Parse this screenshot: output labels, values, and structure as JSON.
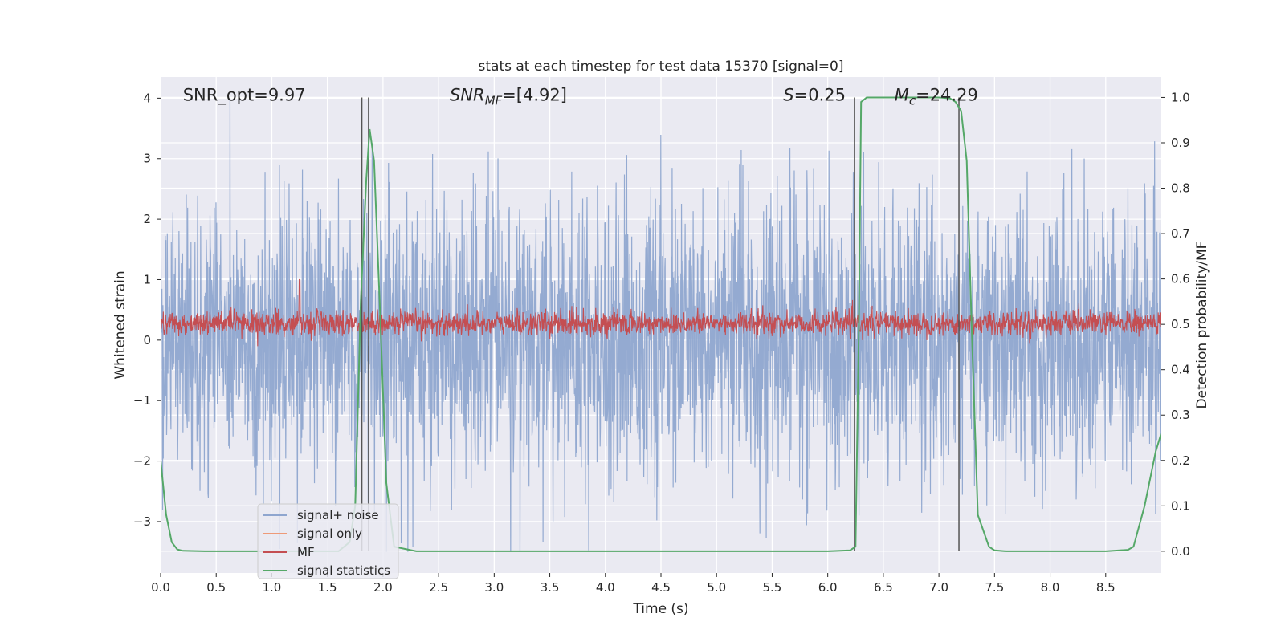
{
  "chart_data": {
    "type": "line",
    "title": "stats at each timestep for test data 15370 [signal=0]",
    "xlabel": "Time (s)",
    "ylabel": "Whitened strain",
    "y2label": "Detection probability/MF",
    "xlim": [
      0,
      9.0
    ],
    "ylim": [
      -3.85,
      4.35
    ],
    "y2lim": [
      -0.048,
      1.045
    ],
    "xticks": [
      0.0,
      0.5,
      1.0,
      1.5,
      2.0,
      2.5,
      3.0,
      3.5,
      4.0,
      4.5,
      5.0,
      5.5,
      6.0,
      6.5,
      7.0,
      7.5,
      8.0,
      8.5
    ],
    "xtick_labels": [
      "0.0",
      "0.5",
      "1.0",
      "1.5",
      "2.0",
      "2.5",
      "3.0",
      "3.5",
      "4.0",
      "4.5",
      "5.0",
      "5.5",
      "6.0",
      "6.5",
      "7.0",
      "7.5",
      "8.0",
      "8.5"
    ],
    "yticks": [
      -3,
      -2,
      -1,
      0,
      1,
      2,
      3,
      4
    ],
    "ytick_labels": [
      "−3",
      "−2",
      "−1",
      "0",
      "1",
      "2",
      "3",
      "4"
    ],
    "y2ticks": [
      0.0,
      0.1,
      0.2,
      0.3,
      0.4,
      0.5,
      0.6,
      0.7,
      0.8,
      0.9,
      1.0
    ],
    "y2tick_labels": [
      "0.0",
      "0.1",
      "0.2",
      "0.3",
      "0.4",
      "0.5",
      "0.6",
      "0.7",
      "0.8",
      "0.9",
      "1.0"
    ],
    "grid": true,
    "legend_position": "lower-left",
    "annotations": [
      {
        "text": "SNR_opt=9.97",
        "x": 0.2,
        "y": 4.05
      },
      {
        "text": "SNR_MF=[4.92]",
        "x": 2.6,
        "y": 4.05
      },
      {
        "text": "S=0.25",
        "x": 5.6,
        "y": 4.05
      },
      {
        "text": "M_c=24.29",
        "x": 6.6,
        "y": 4.05
      }
    ],
    "vertical_lines": [
      1.81,
      1.87,
      6.24,
      7.18
    ],
    "series": [
      {
        "name": "signal+ noise",
        "color": "#8fa6cf",
        "axis": "left",
        "noise_amplitude_typical": 1.5,
        "noise_peak": 4.0
      },
      {
        "name": "signal only",
        "color": "#ee9a78",
        "axis": "left",
        "values": []
      },
      {
        "name": "MF",
        "color": "#c44e52",
        "axis": "left",
        "center": 0.28,
        "amplitude_typical": 0.2,
        "peak": 1.0
      },
      {
        "name": "signal statistics",
        "color": "#55a868",
        "axis": "right",
        "x": [
          0.0,
          0.05,
          0.1,
          0.15,
          0.2,
          0.4,
          0.8,
          1.2,
          1.6,
          1.7,
          1.75,
          1.8,
          1.85,
          1.88,
          1.92,
          1.97,
          2.03,
          2.1,
          2.3,
          3.0,
          4.0,
          5.0,
          6.0,
          6.2,
          6.25,
          6.28,
          6.3,
          6.35,
          6.5,
          6.8,
          7.0,
          7.1,
          7.15,
          7.2,
          7.25,
          7.3,
          7.35,
          7.45,
          7.5,
          7.6,
          8.0,
          8.5,
          8.7,
          8.75,
          8.85,
          8.95,
          9.0
        ],
        "values": [
          0.2,
          0.08,
          0.02,
          0.004,
          0.001,
          0.0,
          0.0,
          0.0,
          0.0,
          0.02,
          0.1,
          0.55,
          0.82,
          0.93,
          0.86,
          0.55,
          0.15,
          0.01,
          0.0,
          0.0,
          0.0,
          0.0,
          0.0,
          0.002,
          0.01,
          0.5,
          0.99,
          1.0,
          1.0,
          1.0,
          1.0,
          0.998,
          0.99,
          0.97,
          0.86,
          0.45,
          0.08,
          0.01,
          0.002,
          0.0,
          0.0,
          0.0,
          0.003,
          0.01,
          0.1,
          0.22,
          0.26
        ]
      }
    ]
  }
}
